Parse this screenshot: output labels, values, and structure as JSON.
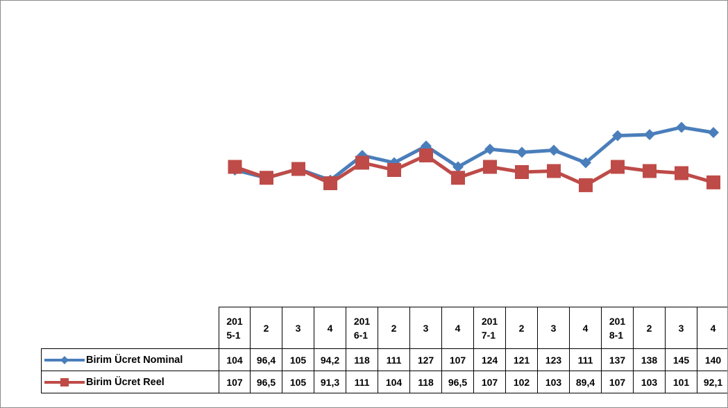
{
  "colors": {
    "nominal": "#4a7ebb",
    "reel": "#be4b48",
    "frame": "#8a8a8a"
  },
  "chart_data": {
    "type": "line",
    "categories": [
      "2015-1",
      "2",
      "3",
      "4",
      "2016-1",
      "2",
      "3",
      "4",
      "2017-1",
      "2",
      "3",
      "4",
      "2018-1",
      "2",
      "3",
      "4"
    ],
    "category_labels": [
      [
        "201",
        "5-1"
      ],
      [
        "2"
      ],
      [
        "3"
      ],
      [
        "4"
      ],
      [
        "201",
        "6-1"
      ],
      [
        "2"
      ],
      [
        "3"
      ],
      [
        "4"
      ],
      [
        "201",
        "7-1"
      ],
      [
        "2"
      ],
      [
        "3"
      ],
      [
        "4"
      ],
      [
        "201",
        "8-1"
      ],
      [
        "2"
      ],
      [
        "3"
      ],
      [
        "4"
      ]
    ],
    "series": [
      {
        "name": "Birim Ücret Nominal",
        "marker": "diamond",
        "values": [
          104,
          96.4,
          105,
          94.2,
          118,
          111,
          127,
          107,
          124,
          121,
          123,
          111,
          137,
          138,
          145,
          140
        ],
        "labels": [
          "104",
          "96,4",
          "105",
          "94,2",
          "118",
          "111",
          "127",
          "107",
          "124",
          "121",
          "123",
          "111",
          "137",
          "138",
          "145",
          "140"
        ]
      },
      {
        "name": "Birim Ücret Reel",
        "marker": "square",
        "values": [
          107,
          96.5,
          105,
          91.3,
          111,
          104,
          118,
          96.5,
          107,
          102,
          103,
          89.4,
          107,
          103,
          101,
          92.1
        ],
        "labels": [
          "107",
          "96,5",
          "105",
          "91,3",
          "111",
          "104",
          "118",
          "96,5",
          "107",
          "102",
          "103",
          "89,4",
          "107",
          "103",
          "101",
          "92,1"
        ]
      }
    ],
    "y_axis_visible": false,
    "gridlines": false,
    "legend": "data-table"
  }
}
